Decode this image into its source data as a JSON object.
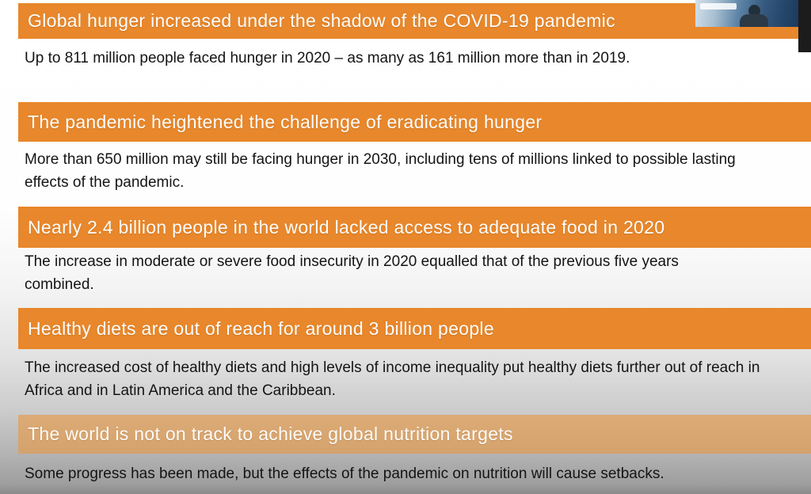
{
  "slide": {
    "sections": [
      {
        "heading": "Global hunger increased under the shadow of the COVID-19 pandemic",
        "body": "Up to 811 million people faced hunger in 2020 – as many as 161 million more than in 2019."
      },
      {
        "heading": "The pandemic heightened the challenge of eradicating hunger",
        "body": "More than 650 million may still be facing hunger in 2030, including tens of millions linked to possible lasting effects of the pandemic."
      },
      {
        "heading": "Nearly 2.4 billion people in the world lacked access to adequate food in 2020",
        "body": "The increase in moderate or severe food insecurity in 2020 equalled that of the previous five years combined."
      },
      {
        "heading": "Healthy diets are out of reach for around 3 billion people",
        "body": "The increased cost of healthy diets and high levels of income inequality put healthy diets further out of reach in Africa and in Latin America and the Caribbean."
      },
      {
        "heading": "The world is not on track to achieve global nutrition targets",
        "body": "Some progress has been made, but the effects of the pandemic on nutrition will cause setbacks."
      }
    ],
    "colors": {
      "bar_orange": "#e8872b",
      "bar_orange_faded": "rgba(233,152,66,0.62)",
      "body_text": "#141414"
    }
  }
}
